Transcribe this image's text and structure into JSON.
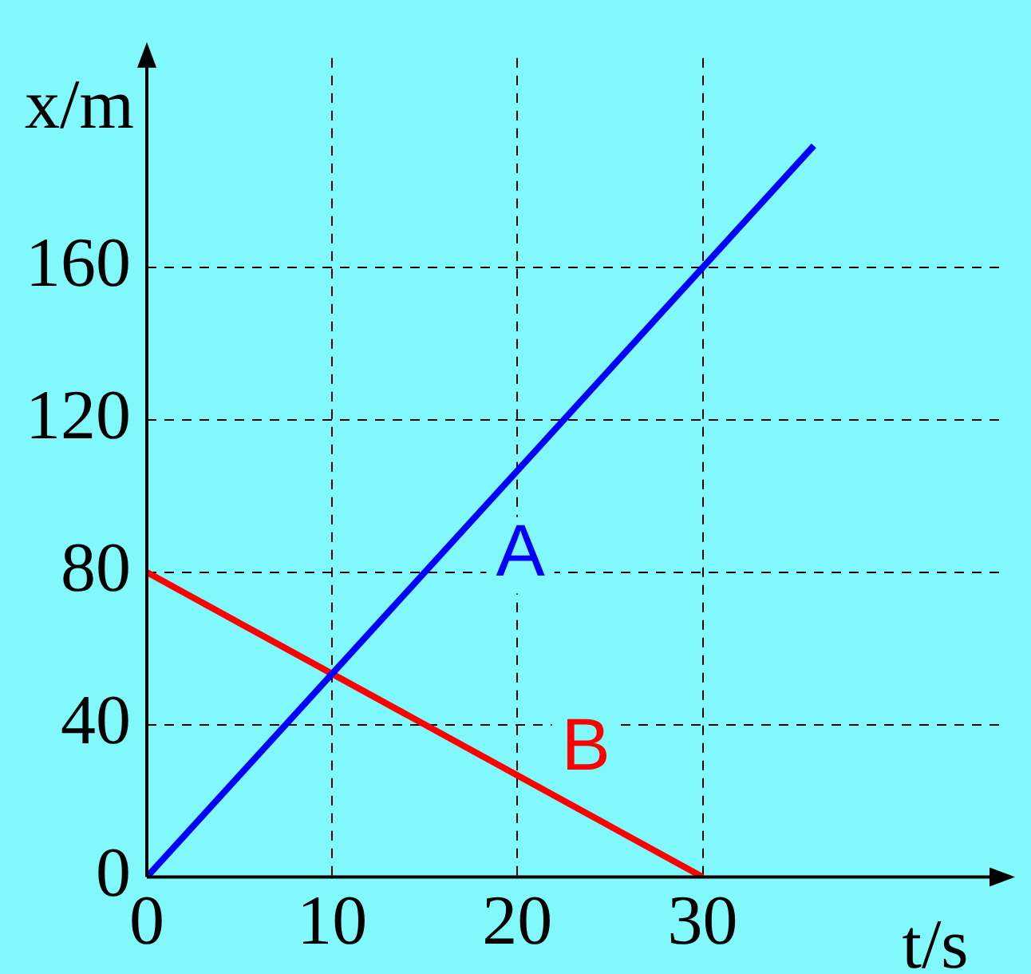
{
  "chart_data": {
    "type": "line",
    "xlabel": "t/s",
    "ylabel": "x/m",
    "series": [
      {
        "name": "A",
        "color": "#0000ff",
        "x": [
          0,
          36
        ],
        "values": [
          0,
          192
        ]
      },
      {
        "name": "B",
        "color": "#ff0000",
        "x": [
          0,
          30
        ],
        "values": [
          80,
          0
        ]
      }
    ],
    "xlim": [
      0,
      46
    ],
    "ylim": [
      0,
      215
    ],
    "xticks": [
      0,
      10,
      20,
      30
    ],
    "yticks": [
      0,
      40,
      80,
      120,
      160
    ],
    "grid": true,
    "line_style": "solid",
    "marker": "none",
    "legend": false
  }
}
